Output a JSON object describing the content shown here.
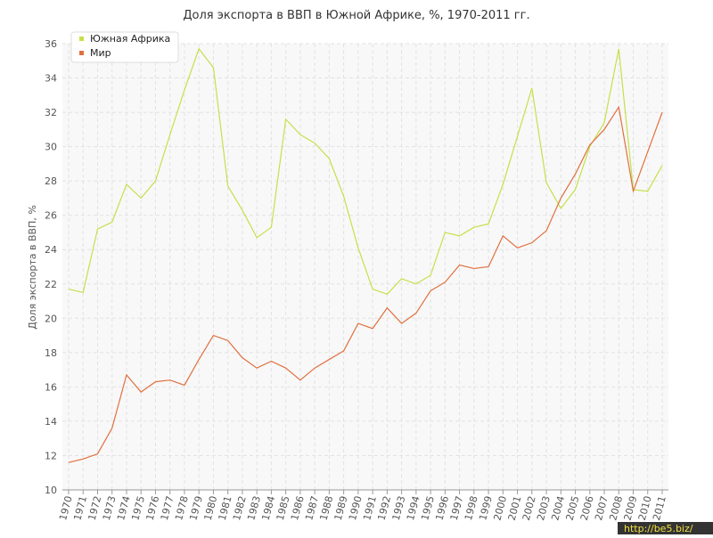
{
  "chart_data": {
    "type": "line",
    "title": "Доля экспорта в ВВП в Южной Африке, %, 1970-2011 гг.",
    "y_label": "Доля экспорта в ВВП, %",
    "watermark": "http://be5.biz/",
    "categories": [
      "1970",
      "1971",
      "1972",
      "1973",
      "1974",
      "1975",
      "1976",
      "1977",
      "1978",
      "1979",
      "1980",
      "1981",
      "1982",
      "1983",
      "1984",
      "1985",
      "1986",
      "1987",
      "1988",
      "1989",
      "1990",
      "1991",
      "1992",
      "1993",
      "1994",
      "1995",
      "1996",
      "1997",
      "1998",
      "1999",
      "2000",
      "2001",
      "2002",
      "2003",
      "2004",
      "2005",
      "2006",
      "2007",
      "2008",
      "2009",
      "2010",
      "2011"
    ],
    "series": [
      {
        "name": "Южная Африка",
        "color": "#c5e04a",
        "values": [
          21.7,
          21.5,
          25.2,
          25.6,
          27.8,
          27.0,
          28.0,
          30.7,
          33.3,
          35.7,
          34.6,
          27.7,
          26.3,
          24.7,
          25.3,
          31.6,
          30.7,
          30.2,
          29.3,
          27.1,
          24.1,
          21.7,
          21.4,
          22.3,
          22.0,
          22.5,
          25.0,
          24.8,
          25.3,
          25.5,
          27.8,
          30.6,
          33.4,
          27.9,
          26.4,
          27.5,
          30.0,
          31.4,
          35.7,
          27.5,
          27.4,
          28.9
        ]
      },
      {
        "name": "Мир",
        "color": "#e0703f",
        "values": [
          11.6,
          11.8,
          12.1,
          13.6,
          16.7,
          15.7,
          16.3,
          16.4,
          16.1,
          17.6,
          19.0,
          18.7,
          17.7,
          17.1,
          17.5,
          17.1,
          16.4,
          17.1,
          17.6,
          18.1,
          19.7,
          19.4,
          20.6,
          19.7,
          20.3,
          21.6,
          22.1,
          23.1,
          22.9,
          23.0,
          24.8,
          24.1,
          24.4,
          25.1,
          27.0,
          28.4,
          30.1,
          31.0,
          32.3,
          27.4,
          29.7,
          32.0
        ]
      }
    ],
    "ylim": [
      10,
      36
    ],
    "yticks": [
      10,
      12,
      14,
      16,
      18,
      20,
      22,
      24,
      26,
      28,
      30,
      32,
      34,
      36
    ],
    "grid": true,
    "legend": "top-left"
  }
}
